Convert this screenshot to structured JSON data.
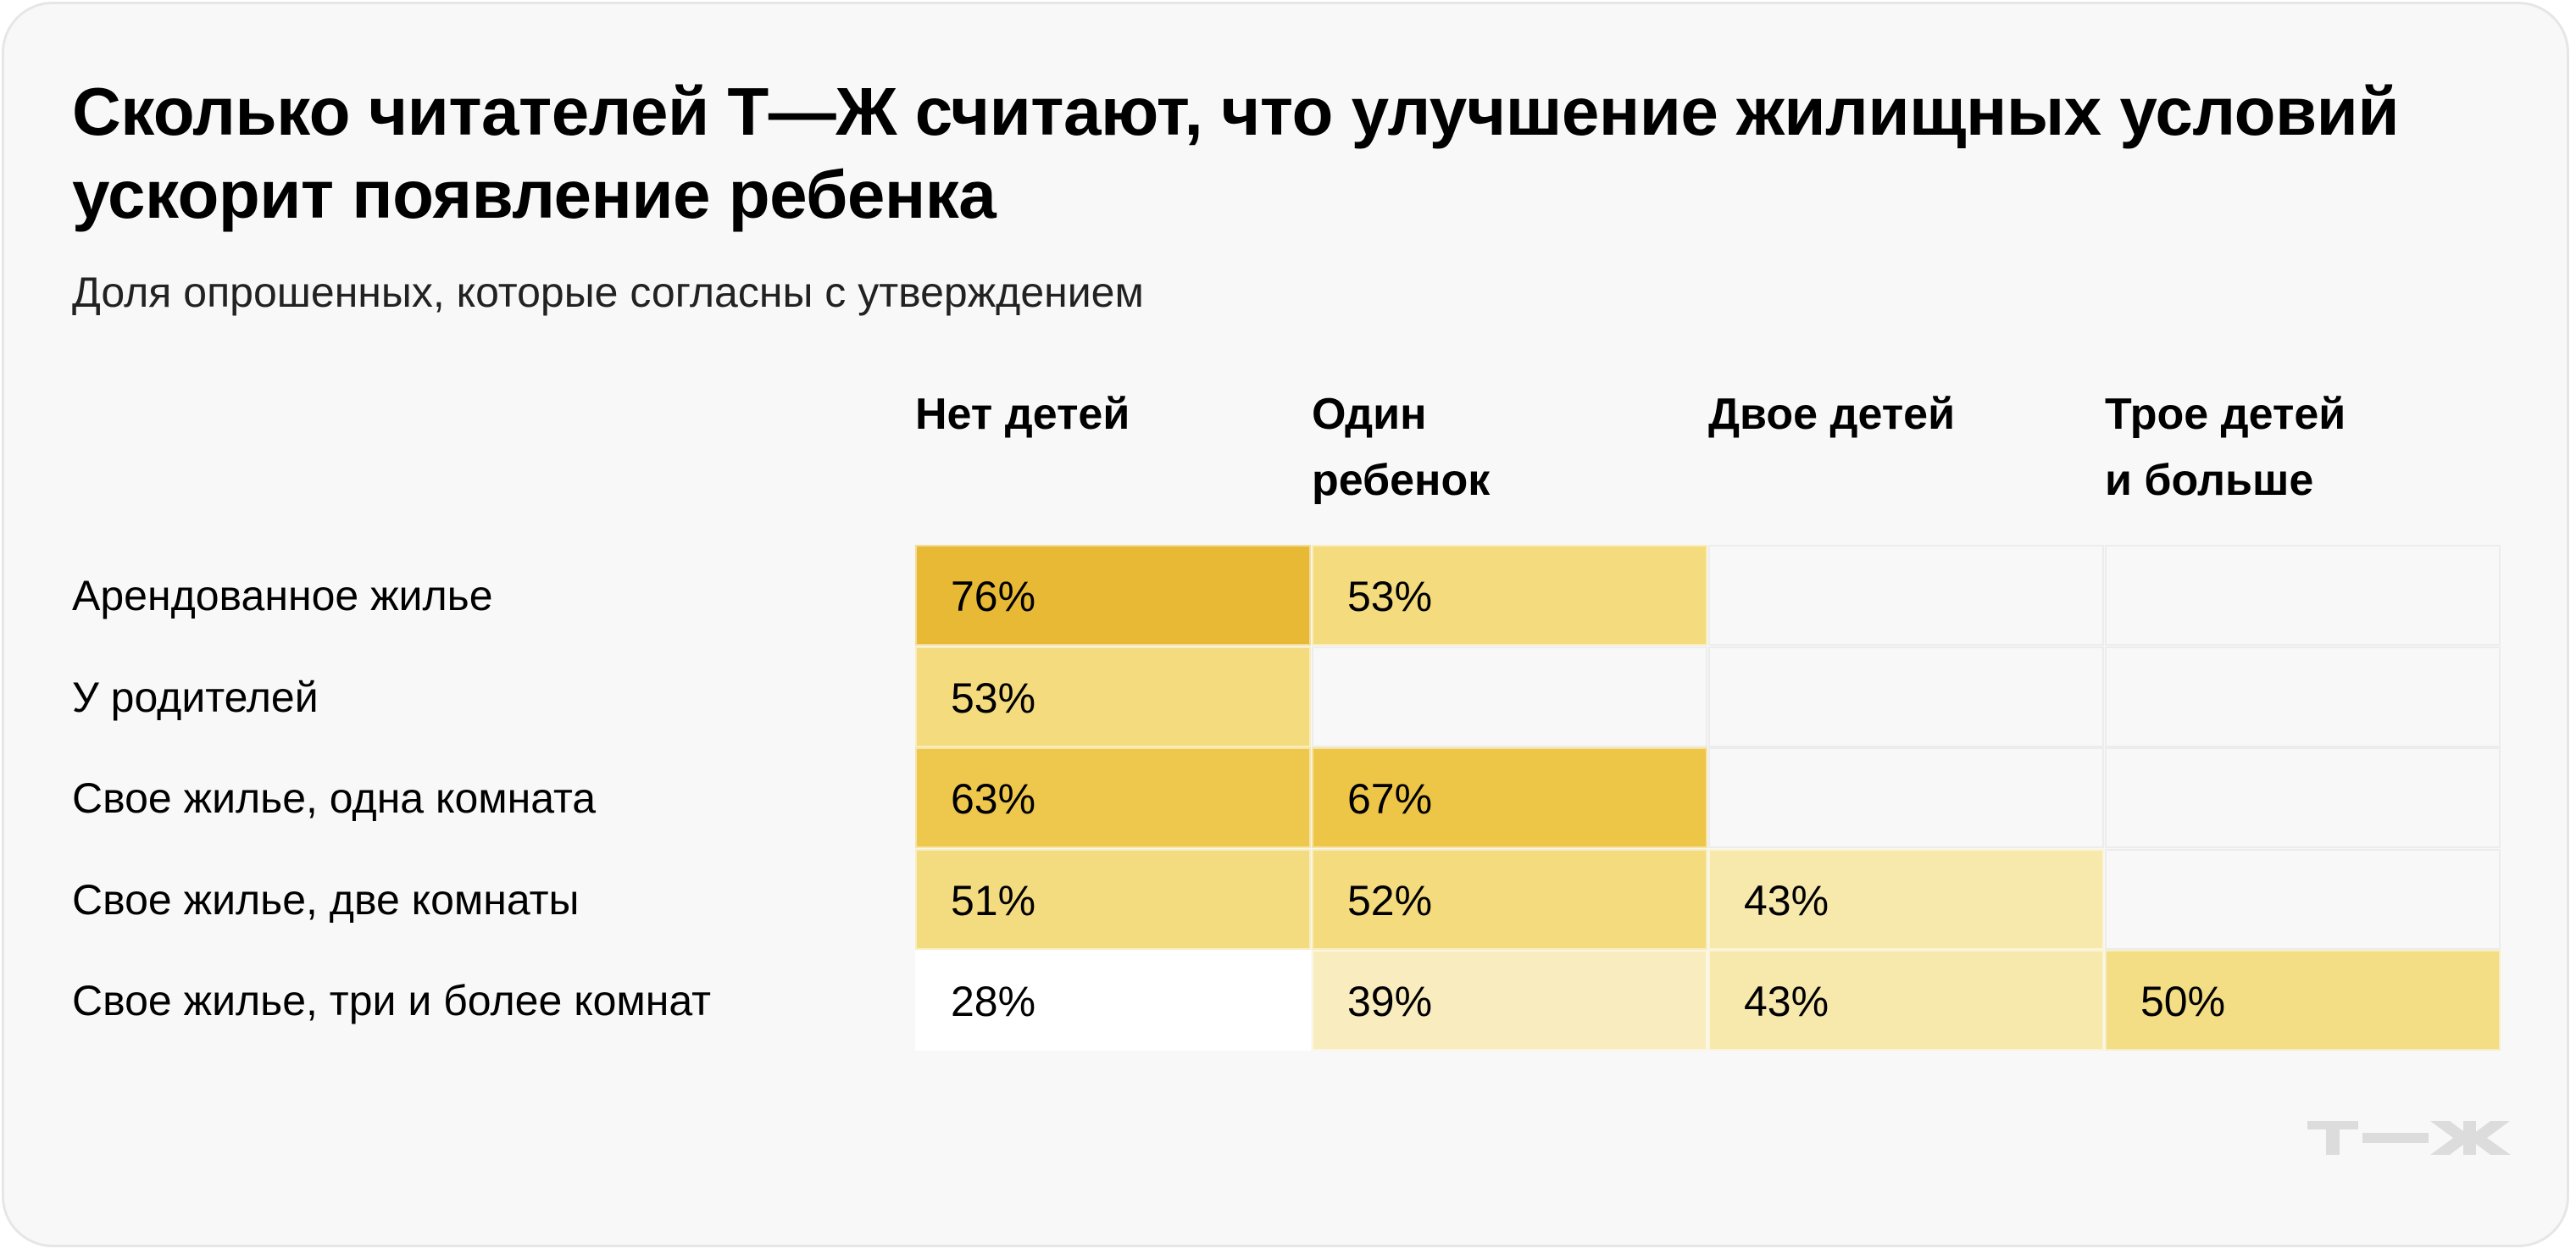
{
  "chart_data": {
    "type": "heatmap",
    "title": "Сколько читателей Т—Ж считают, что улучшение жилищных условий ускорит появление ребенка",
    "subtitle": "Доля опрошенных, которые согласны с утверждением",
    "columns": [
      "Нет детей",
      "Один ребенок",
      "Двое детей",
      "Трое детей и больше"
    ],
    "rows": [
      "Арендованное жилье",
      "У родителей",
      "Свое жилье, одна комната",
      "Свое жилье, две комнаты",
      "Свое жилье, три и более комнат"
    ],
    "values": [
      [
        76,
        53,
        null,
        null
      ],
      [
        53,
        null,
        null,
        null
      ],
      [
        63,
        67,
        null,
        null
      ],
      [
        51,
        52,
        43,
        null
      ],
      [
        28,
        39,
        43,
        50
      ]
    ],
    "labels": [
      [
        "76%",
        "53%",
        "",
        ""
      ],
      [
        "53%",
        "",
        "",
        ""
      ],
      [
        "63%",
        "67%",
        "",
        ""
      ],
      [
        "51%",
        "52%",
        "43%",
        ""
      ],
      [
        "28%",
        "39%",
        "43%",
        "50%"
      ]
    ],
    "colors": [
      [
        "#e8b935",
        "#f3db7e",
        "#f8f8f8",
        "#f8f8f8"
      ],
      [
        "#f3db7e",
        "#f8f8f8",
        "#f8f8f8",
        "#f8f8f8"
      ],
      [
        "#eec84d",
        "#edc647",
        "#f8f8f8",
        "#f8f8f8"
      ],
      [
        "#f3dc80",
        "#f3db7e",
        "#f7e8ac",
        "#f8f8f8"
      ],
      [
        "#ffffff",
        "#f9edc0",
        "#f7e8ac",
        "#f3dd85"
      ]
    ]
  },
  "logo": {
    "text": "Т—Ж",
    "color": "#dcdcdc"
  }
}
